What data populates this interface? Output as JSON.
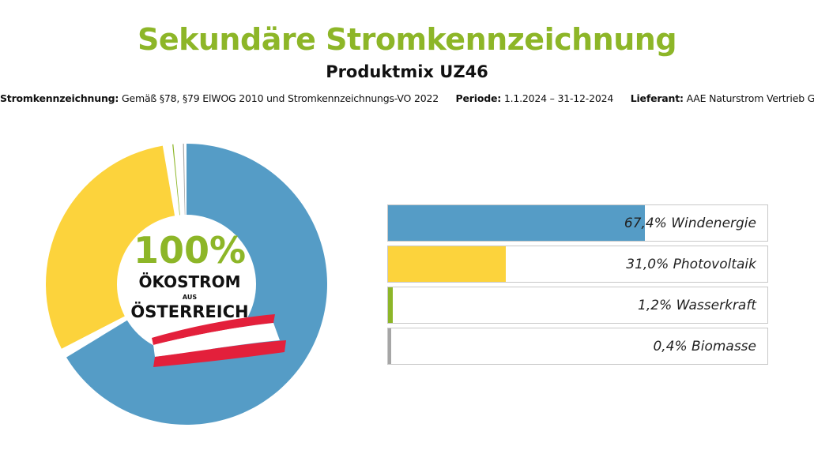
{
  "header": {
    "title": "Sekundäre Stromkennzeichnung",
    "subtitle": "Produktmix UZ46",
    "info": {
      "label1": "Stromkennzeichnung:",
      "value1": "Gemäß §78, §79 ElWOG 2010 und Stromkennzeichnungs-VO 2022",
      "label2": "Periode:",
      "value2": "1.1.2024 – 31-12-2024",
      "label3": "Lieferant:",
      "value3": "AAE Naturstrom Vertrieb GmbH"
    }
  },
  "colors": {
    "title": "#8db628",
    "wind": "#559cc6",
    "photovoltaik": "#fcd33c",
    "wasserkraft": "#8db628",
    "biomasse": "#a6a6a6",
    "flag_red": "#e3203b"
  },
  "badge": {
    "percent": "100%",
    "line1": "ÖKOSTROM",
    "line2": "AUS",
    "line3": "ÖSTERREICH"
  },
  "chart_data": {
    "type": "pie",
    "categories": [
      "Windenergie",
      "Photovoltaik",
      "Wasserkraft",
      "Biomasse"
    ],
    "values": [
      67.4,
      31.0,
      1.2,
      0.4
    ],
    "labels": [
      "67,4% Windenergie",
      "31,0% Photovoltaik",
      "1,2% Wasserkraft",
      "0,4% Biomasse"
    ],
    "title": "Sekundäre Stromkennzeichnung",
    "subtitle": "Produktmix UZ46",
    "legend": "right"
  }
}
